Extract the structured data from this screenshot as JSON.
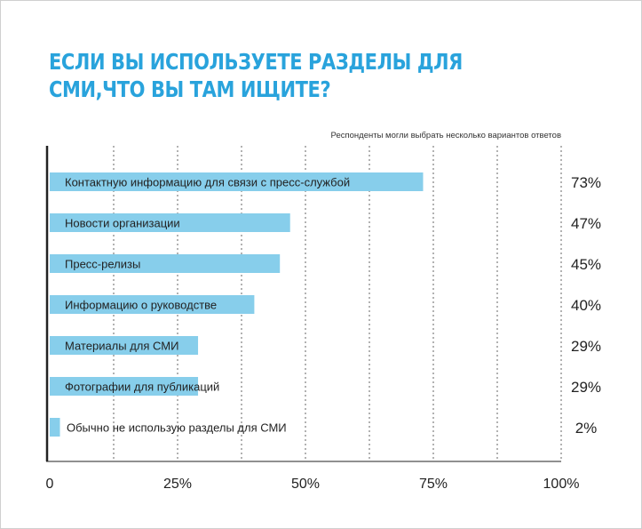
{
  "title_lines": [
    "ЕСЛИ ВЫ ИСПОЛЬЗУЕТЕ РАЗДЕЛЫ ДЛЯ",
    "СМИ,ЧТО ВЫ ТАМ ИЩИТЕ?"
  ],
  "note": "Респонденты могли выбрать несколько вариантов ответов",
  "colors": {
    "bar": "#87ceeb",
    "title": "#29a3dc",
    "axis": "#222222",
    "grid": "#666666"
  },
  "chart_data": {
    "type": "bar",
    "orientation": "horizontal",
    "categories": [
      "Контактную информацию для связи с пресс-службой",
      "Новости организации",
      "Пресс-релизы",
      "Информацию о руководстве",
      "Материалы для СМИ",
      "Фотографии для публикаций",
      "Обычно не использую разделы для СМИ"
    ],
    "values": [
      73,
      47,
      45,
      40,
      29,
      29,
      2
    ],
    "value_labels": [
      "73%",
      "47%",
      "45%",
      "40%",
      "29%",
      "29%",
      "2%"
    ],
    "xlim": [
      0,
      100
    ],
    "ticks": [
      0,
      25,
      50,
      75,
      100
    ],
    "tick_labels": [
      "0",
      "25%",
      "50%",
      "75%",
      "100%"
    ],
    "minor_ticks": [
      12.5,
      37.5,
      62.5,
      87.5
    ],
    "grid": "vertical dashed",
    "legend": "none"
  }
}
